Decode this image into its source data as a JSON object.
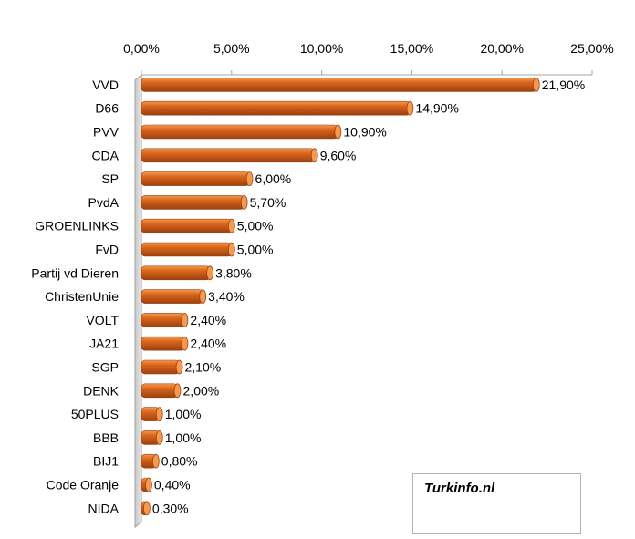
{
  "chart_data": {
    "type": "bar",
    "orientation": "horizontal",
    "categories": [
      "VVD",
      "D66",
      "PVV",
      "CDA",
      "SP",
      "PvdA",
      "GROENLINKS",
      "FvD",
      "Partij vd Dieren",
      "ChristenUnie",
      "VOLT",
      "JA21",
      "SGP",
      "DENK",
      "50PLUS",
      "BBB",
      "BIJ1",
      "Code Oranje",
      "NIDA"
    ],
    "values": [
      21.9,
      14.9,
      10.9,
      9.6,
      6.0,
      5.7,
      5.0,
      5.0,
      3.8,
      3.4,
      2.4,
      2.4,
      2.1,
      2.0,
      1.0,
      1.0,
      0.8,
      0.4,
      0.3
    ],
    "data_labels": [
      "21,90%",
      "14,90%",
      "10,90%",
      "9,60%",
      "6,00%",
      "5,70%",
      "5,00%",
      "5,00%",
      "3,80%",
      "3,40%",
      "2,40%",
      "2,40%",
      "2,10%",
      "2,00%",
      "1,00%",
      "1,00%",
      "0,80%",
      "0,40%",
      "0,30%"
    ],
    "xlim": [
      0,
      25
    ],
    "ticks": [
      0,
      5,
      10,
      15,
      20,
      25
    ],
    "tick_labels": [
      "0,00%",
      "5,00%",
      "10,00%",
      "15,00%",
      "20,00%",
      "25,00%"
    ],
    "axis_position": "top",
    "grid": false,
    "legend": "none",
    "title": "",
    "xlabel": "",
    "ylabel": "",
    "bar_color": "#d9661c",
    "bar_highlight": "#f59a4e",
    "bar_shadow": "#9c4010"
  },
  "watermark": {
    "text": "Turkinfo.nl"
  }
}
